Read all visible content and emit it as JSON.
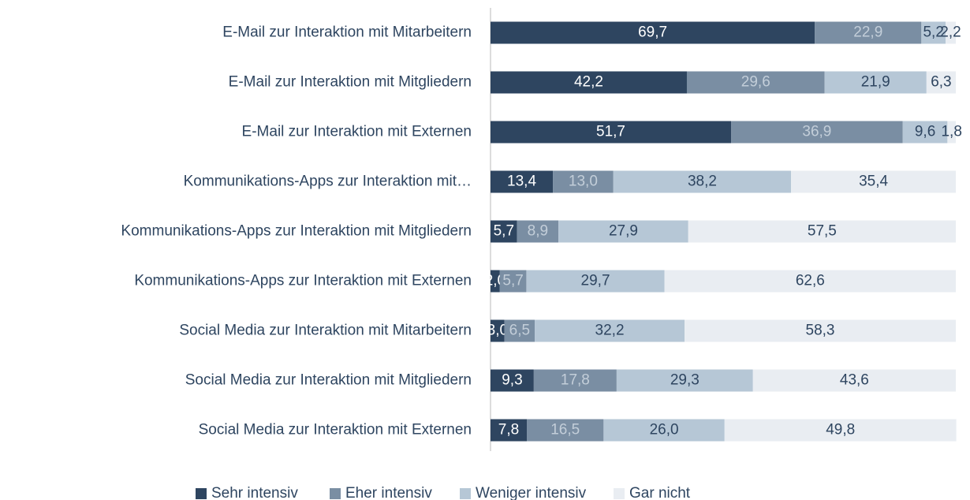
{
  "chart_data": {
    "type": "stacked_barh",
    "categories": [
      "E-Mail zur Interaktion mit Mitarbeitern",
      "E-Mail zur Interaktion mit Mitgliedern",
      "E-Mail zur Interaktion mit Externen",
      "Kommunikations-Apps zur Interaktion mit…",
      "Kommunikations-Apps zur Interaktion mit Mitgliedern",
      "Kommunikations-Apps zur Interaktion mit Externen",
      "Social Media zur Interaktion mit Mitarbeitern",
      "Social Media zur Interaktion mit Mitgliedern",
      "Social Media zur Interaktion mit Externen"
    ],
    "series": [
      {
        "name": "Sehr intensiv",
        "color": "#2e4560",
        "label_color": "#ffffff",
        "values": [
          69.7,
          42.2,
          51.7,
          13.4,
          5.7,
          2.0,
          3.0,
          9.3,
          7.8
        ],
        "value_labels": [
          "69,7",
          "42,2",
          "51,7",
          "13,4",
          "5,7",
          "2,0",
          "3,0",
          "9,3",
          "7,8"
        ]
      },
      {
        "name": "Eher intensiv",
        "color": "#7a8ea3",
        "label_color": "#c3ced9",
        "values": [
          22.9,
          29.6,
          36.9,
          13.0,
          8.9,
          5.7,
          6.5,
          17.8,
          16.5
        ],
        "value_labels": [
          "22,9",
          "29,6",
          "36,9",
          "13,0",
          "8,9",
          "5,7",
          "6,5",
          "17,8",
          "16,5"
        ]
      },
      {
        "name": "Weniger intensiv",
        "color": "#b6c7d6",
        "label_color": "#2e4560",
        "values": [
          5.2,
          21.9,
          9.6,
          38.2,
          27.9,
          29.7,
          32.2,
          29.3,
          26.0
        ],
        "value_labels": [
          "5,2",
          "21,9",
          "9,6",
          "38,2",
          "27,9",
          "29,7",
          "32,2",
          "29,3",
          "26,0"
        ]
      },
      {
        "name": "Gar nicht",
        "color": "#e9edf2",
        "label_color": "#2e4560",
        "values": [
          2.2,
          6.3,
          1.8,
          35.4,
          57.5,
          62.6,
          58.3,
          43.6,
          49.8
        ],
        "value_labels": [
          "2,2",
          "6,3",
          "1,8",
          "35,4",
          "57,5",
          "62,6",
          "58,3",
          "43,6",
          "49,8"
        ]
      }
    ],
    "xlim": [
      0,
      100
    ]
  }
}
